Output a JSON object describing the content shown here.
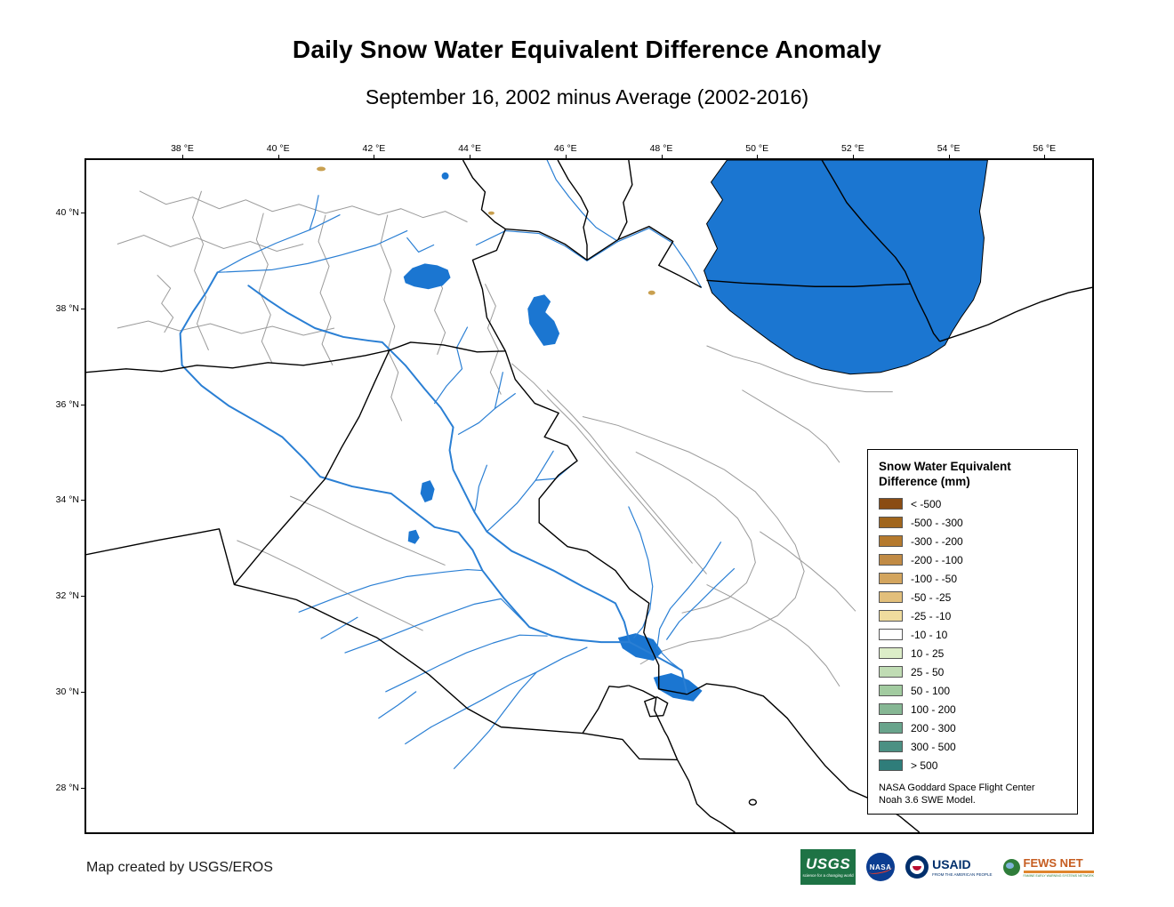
{
  "page": {
    "title": "Daily Snow Water Equivalent Difference Anomaly",
    "subtitle": "September 16, 2002 minus Average (2002-2016)",
    "credit": "Map created by USGS/EROS"
  },
  "map": {
    "lon_ticks": [
      "38 °E",
      "40 °E",
      "42 °E",
      "44 °E",
      "46 °E",
      "48 °E",
      "50 °E",
      "52 °E",
      "54 °E",
      "56 °E"
    ],
    "lat_ticks": [
      "40 °N",
      "38 °N",
      "36 °N",
      "34 °N",
      "32 °N",
      "30 °N",
      "28 °N"
    ],
    "water_color": "#1b76d1",
    "river_color": "#2a7fd4",
    "watershed_color": "#9a9a9a",
    "border_color": "#000000"
  },
  "legend": {
    "title": [
      "Snow Water Equivalent",
      "Difference (mm)"
    ],
    "entries": [
      {
        "label": "< -500",
        "color": "#8a4c13"
      },
      {
        "label": "-500 - -300",
        "color": "#a1661d"
      },
      {
        "label": "-300 - -200",
        "color": "#b57a2e"
      },
      {
        "label": "-200 - -100",
        "color": "#c18b45"
      },
      {
        "label": "-100 - -50",
        "color": "#d3a55e"
      },
      {
        "label": "-50 - -25",
        "color": "#e2bf7b"
      },
      {
        "label": "-25 - -10",
        "color": "#f0dc9e"
      },
      {
        "label": "-10 - 10",
        "color": "#ffffff"
      },
      {
        "label": "10 - 25",
        "color": "#dcedc8"
      },
      {
        "label": "25 - 50",
        "color": "#c0dcb4"
      },
      {
        "label": "50 - 100",
        "color": "#a2cba0"
      },
      {
        "label": "100 - 200",
        "color": "#86b794"
      },
      {
        "label": "200 - 300",
        "color": "#68a48c"
      },
      {
        "label": "300 - 500",
        "color": "#4b9083"
      },
      {
        "label": "> 500",
        "color": "#2f7d7a"
      }
    ],
    "note": [
      "NASA Goddard Space Flight Center",
      "Noah 3.6 SWE Model."
    ]
  },
  "logos": {
    "usgs": {
      "label": "USGS",
      "tagline": "science for a changing world"
    },
    "nasa": {
      "label": "NASA"
    },
    "usaid": {
      "label": "USAID",
      "tagline": "FROM THE AMERICAN PEOPLE"
    },
    "fews": {
      "label": "FEWS NET",
      "tagline": "FAMINE EARLY WARNING SYSTEMS NETWORK"
    }
  }
}
